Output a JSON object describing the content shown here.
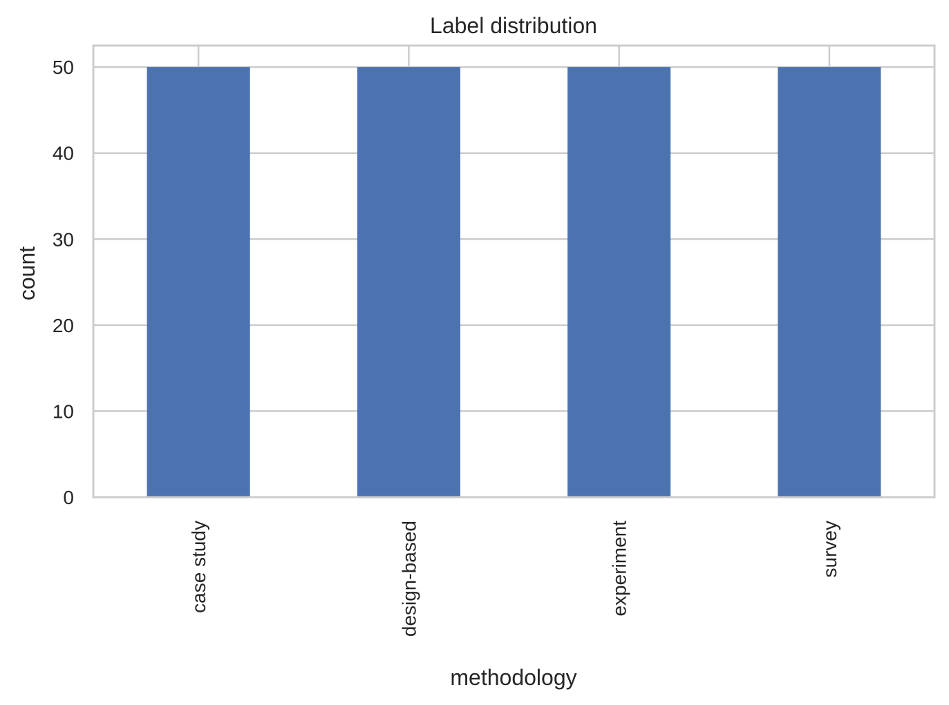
{
  "chart_data": {
    "type": "bar",
    "title": "Label distribution",
    "xlabel": "methodology",
    "ylabel": "count",
    "categories": [
      "case study",
      "design-based",
      "experiment",
      "survey"
    ],
    "values": [
      50,
      50,
      50,
      50
    ],
    "ylim": [
      0,
      52.5
    ],
    "yticks": [
      "0",
      "10",
      "20",
      "30",
      "40",
      "50"
    ],
    "bar_color": "#4c72b0",
    "grid": true,
    "legend": "none"
  }
}
